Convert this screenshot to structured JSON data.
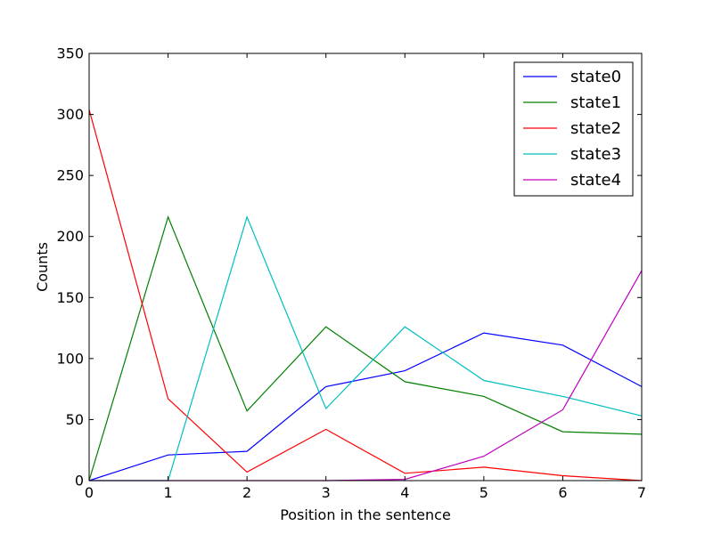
{
  "chart_data": {
    "type": "line",
    "xlabel": "Position in the sentence",
    "ylabel": "Counts",
    "xlim": [
      0,
      7
    ],
    "ylim": [
      0,
      350
    ],
    "xticks": [
      0,
      1,
      2,
      3,
      4,
      5,
      6,
      7
    ],
    "yticks": [
      0,
      50,
      100,
      150,
      200,
      250,
      300,
      350
    ],
    "grid": false,
    "legend_position": "top-right",
    "x": [
      0,
      1,
      2,
      3,
      4,
      5,
      6,
      7
    ],
    "series": [
      {
        "name": "state0",
        "color": "#0000ff",
        "values": [
          0,
          21,
          24,
          77,
          90,
          121,
          111,
          77
        ]
      },
      {
        "name": "state1",
        "color": "#008000",
        "values": [
          0,
          216,
          57,
          126,
          81,
          69,
          40,
          38
        ]
      },
      {
        "name": "state2",
        "color": "#ff0000",
        "values": [
          304,
          67,
          7,
          42,
          6,
          11,
          4,
          0
        ]
      },
      {
        "name": "state3",
        "color": "#00bfbf",
        "values": [
          0,
          0,
          216,
          59,
          126,
          82,
          69,
          53
        ]
      },
      {
        "name": "state4",
        "color": "#bf00bf",
        "values": [
          0,
          0,
          0,
          0,
          1,
          20,
          58,
          172
        ]
      }
    ]
  }
}
